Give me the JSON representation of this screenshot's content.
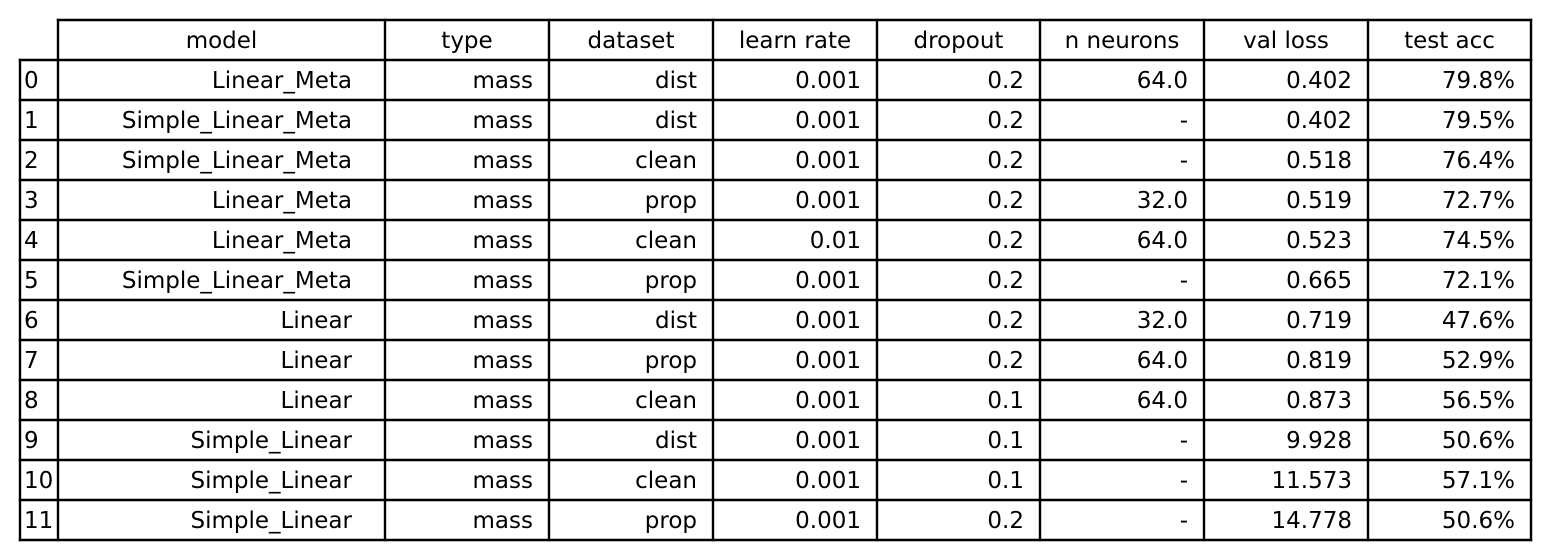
{
  "chart_data": {
    "type": "table",
    "columns": [
      "model",
      "type",
      "dataset",
      "learn rate",
      "dropout",
      "n neurons",
      "val loss",
      "test acc"
    ],
    "row_labels": [
      "0",
      "1",
      "2",
      "3",
      "4",
      "5",
      "6",
      "7",
      "8",
      "9",
      "10",
      "11"
    ],
    "rows": [
      [
        "Linear_Meta",
        "mass",
        "dist",
        "0.001",
        "0.2",
        "64.0",
        "0.402",
        "79.8%"
      ],
      [
        "Simple_Linear_Meta",
        "mass",
        "dist",
        "0.001",
        "0.2",
        "-",
        "0.402",
        "79.5%"
      ],
      [
        "Simple_Linear_Meta",
        "mass",
        "clean",
        "0.001",
        "0.2",
        "-",
        "0.518",
        "76.4%"
      ],
      [
        "Linear_Meta",
        "mass",
        "prop",
        "0.001",
        "0.2",
        "32.0",
        "0.519",
        "72.7%"
      ],
      [
        "Linear_Meta",
        "mass",
        "clean",
        "0.01",
        "0.2",
        "64.0",
        "0.523",
        "74.5%"
      ],
      [
        "Simple_Linear_Meta",
        "mass",
        "prop",
        "0.001",
        "0.2",
        "-",
        "0.665",
        "72.1%"
      ],
      [
        "Linear",
        "mass",
        "dist",
        "0.001",
        "0.2",
        "32.0",
        "0.719",
        "47.6%"
      ],
      [
        "Linear",
        "mass",
        "prop",
        "0.001",
        "0.2",
        "64.0",
        "0.819",
        "52.9%"
      ],
      [
        "Linear",
        "mass",
        "clean",
        "0.001",
        "0.1",
        "64.0",
        "0.873",
        "56.5%"
      ],
      [
        "Simple_Linear",
        "mass",
        "dist",
        "0.001",
        "0.1",
        "-",
        "9.928",
        "50.6%"
      ],
      [
        "Simple_Linear",
        "mass",
        "clean",
        "0.001",
        "0.1",
        "-",
        "11.573",
        "57.1%"
      ],
      [
        "Simple_Linear",
        "mass",
        "prop",
        "0.001",
        "0.2",
        "-",
        "14.778",
        "50.6%"
      ]
    ]
  }
}
